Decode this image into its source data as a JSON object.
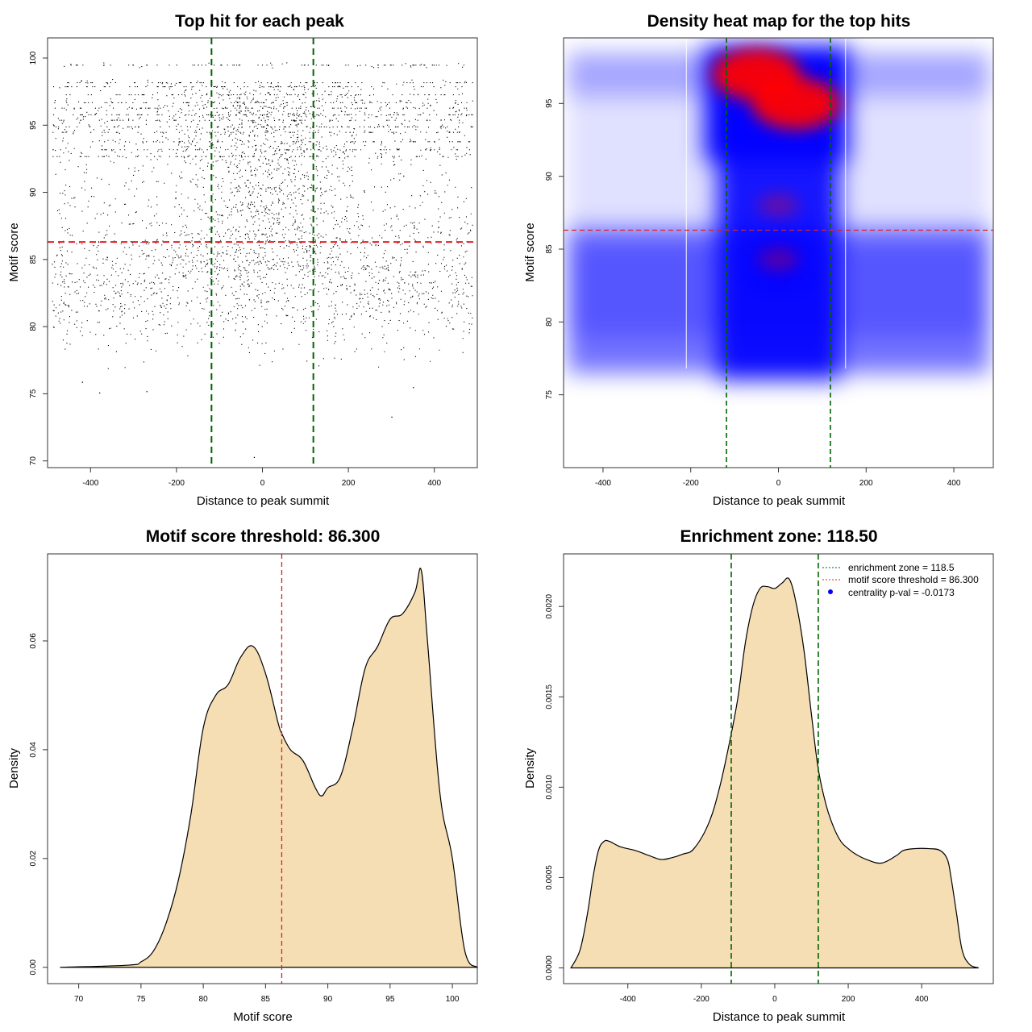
{
  "colors": {
    "scatter_point": "#000000",
    "threshold": "#e02020",
    "zone": "#006400",
    "fill": "#f5deb3",
    "heat_low": "#ffffff",
    "heat_mid": "#0000ff",
    "heat_high": "#ff0000",
    "legend_dot": "#0000ff"
  },
  "chart_data": [
    {
      "id": "scatter",
      "type": "scatter",
      "title": "Top hit for each peak",
      "xlabel": "Distance to peak summit",
      "ylabel": "Motif score",
      "xlim": [
        -500,
        500
      ],
      "ylim": [
        69.5,
        101.5
      ],
      "xticks": [
        -400,
        -200,
        0,
        200,
        400
      ],
      "yticks": [
        70,
        75,
        80,
        85,
        90,
        95,
        100
      ],
      "threshold": 86.3,
      "zone": [
        -118.5,
        118.5
      ],
      "x_range": [
        -490,
        490
      ],
      "n_points": 26000,
      "score_mode_high": 96,
      "score_mode_low": 83,
      "outliers": [
        [
          -20,
          70.3
        ],
        [
          300,
          73.3
        ],
        [
          -380,
          75.1
        ],
        [
          -270,
          75.2
        ],
        [
          350,
          75.5
        ],
        [
          -420,
          75.9
        ]
      ]
    },
    {
      "id": "heatmap",
      "type": "heatmap",
      "title": "Density heat map for the top hits",
      "xlabel": "Distance to peak summit",
      "ylabel": "Motif score",
      "xlim": [
        -490,
        490
      ],
      "ylim": [
        70,
        99.5
      ],
      "xticks": [
        -400,
        -200,
        0,
        200,
        400
      ],
      "yticks": [
        75,
        80,
        85,
        90,
        95
      ],
      "threshold": 86.3,
      "zone": [
        -118.5,
        118.5
      ],
      "hot_spots": [
        {
          "x": -50,
          "y": 97,
          "intensity": 1.0
        },
        {
          "x": 40,
          "y": 95,
          "intensity": 1.0
        },
        {
          "x": 0,
          "y": 84.3,
          "intensity": 0.55
        },
        {
          "x": 0,
          "y": 88,
          "intensity": 0.5
        }
      ]
    },
    {
      "id": "score_density",
      "type": "area",
      "title": "Motif score threshold: 86.300",
      "xlabel": "Motif score",
      "ylabel": "Density",
      "xlim": [
        67.5,
        102
      ],
      "ylim": [
        -0.003,
        0.076
      ],
      "xticks": [
        70,
        75,
        80,
        85,
        90,
        95,
        100
      ],
      "yticks": [
        0,
        0.02,
        0.04,
        0.06
      ],
      "ytick_labels": [
        "0.00",
        "0.02",
        "0.04",
        "0.06"
      ],
      "threshold": 86.3,
      "x": [
        68.5,
        74,
        75,
        76,
        77,
        78,
        79,
        80,
        81,
        82,
        83,
        84,
        85,
        86,
        86.3,
        87,
        88,
        89,
        89.5,
        90,
        91,
        92,
        93,
        94,
        95,
        96,
        97,
        97.5,
        98,
        99,
        100,
        101,
        102
      ],
      "y": [
        0,
        0.0004,
        0.001,
        0.003,
        0.008,
        0.016,
        0.028,
        0.044,
        0.05,
        0.052,
        0.057,
        0.059,
        0.054,
        0.045,
        0.043,
        0.04,
        0.038,
        0.033,
        0.0315,
        0.033,
        0.035,
        0.044,
        0.055,
        0.059,
        0.064,
        0.065,
        0.069,
        0.073,
        0.06,
        0.032,
        0.02,
        0.003,
        0
      ]
    },
    {
      "id": "distance_density",
      "type": "area",
      "title": "Enrichment zone: 118.50",
      "xlabel": "Distance to peak summit",
      "ylabel": "Density",
      "xlim": [
        -575,
        595
      ],
      "ylim": [
        -8.7e-05,
        0.002291
      ],
      "xticks": [
        -400,
        -200,
        0,
        200,
        400
      ],
      "yticks": [
        0,
        0.0005,
        0.001,
        0.0015,
        0.002
      ],
      "ytick_labels": [
        "0.0000",
        "0.0005",
        "0.0010",
        "0.0015",
        "0.0020"
      ],
      "zone": [
        -118.5,
        118.5
      ],
      "x": [
        -555,
        -530,
        -510,
        -495,
        -480,
        -465,
        -450,
        -420,
        -380,
        -340,
        -310,
        -280,
        -250,
        -220,
        -180,
        -150,
        -120,
        -100,
        -80,
        -60,
        -40,
        -20,
        0,
        20,
        40,
        60,
        80,
        100,
        118.5,
        140,
        160,
        180,
        200,
        220,
        250,
        290,
        330,
        350,
        380,
        420,
        450,
        470,
        480,
        495,
        510,
        530,
        555
      ],
      "y": [
        0,
        0.0001,
        0.0003,
        0.0005,
        0.00065,
        0.0007,
        0.0007,
        0.00067,
        0.00065,
        0.00062,
        0.0006,
        0.00061,
        0.00063,
        0.00066,
        0.0008,
        0.001,
        0.00128,
        0.0015,
        0.0018,
        0.002,
        0.0021,
        0.00211,
        0.0021,
        0.00213,
        0.00215,
        0.002,
        0.00175,
        0.0014,
        0.0011,
        0.0009,
        0.00078,
        0.0007,
        0.00066,
        0.00063,
        0.0006,
        0.00058,
        0.00062,
        0.00065,
        0.00066,
        0.00066,
        0.00065,
        0.0006,
        0.0005,
        0.0003,
        0.0001,
        2e-05,
        0
      ],
      "legend": {
        "entries": [
          "enrichment zone = 118.5",
          "motif score threshold = 86.300",
          "centrality p-val = -0.0173"
        ],
        "placement": "top-right"
      }
    }
  ]
}
